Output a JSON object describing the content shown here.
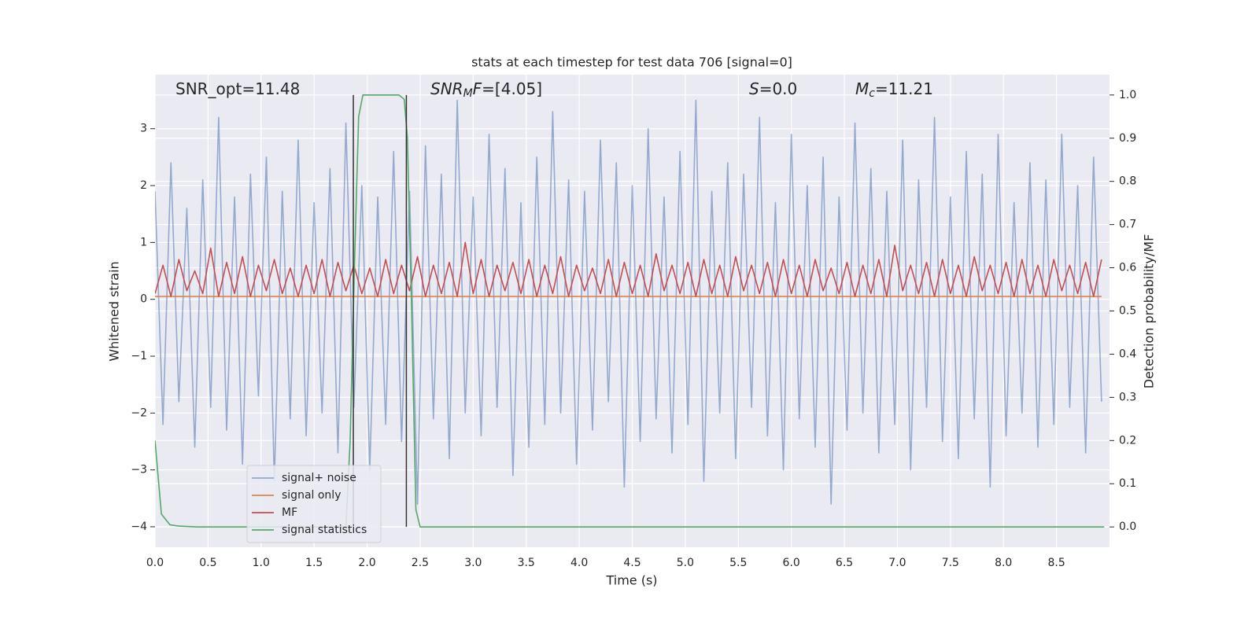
{
  "chart_data": {
    "type": "line",
    "title": "stats at each timestep for test data 706 [signal=0]",
    "xlabel": "Time (s)",
    "ylabel": "Whitened strain",
    "y2label": "Detection probability/MF",
    "annotations": [
      [
        {
          "text": "SNR_opt=11.48"
        }
      ],
      [
        {
          "text": "SNR",
          "style": "italic"
        },
        {
          "text": "M",
          "style": "sub"
        },
        {
          "text": "F",
          "style": "italic"
        },
        {
          "text": "=[4.05]"
        }
      ],
      [
        {
          "text": "S",
          "style": "italic"
        },
        {
          "text": "=0.0"
        }
      ],
      [
        {
          "text": "M",
          "style": "italic"
        },
        {
          "text": "c",
          "style": "sub"
        },
        {
          "text": "=11.21"
        }
      ]
    ],
    "xlim": [
      0,
      9.0
    ],
    "ylim": [
      -4.36,
      3.95
    ],
    "y2lim": [
      -0.047,
      1.047
    ],
    "xticks": [
      {
        "value": 0,
        "label": "0.0"
      },
      {
        "value": 0.5,
        "label": "0.5"
      },
      {
        "value": 1,
        "label": "1.0"
      },
      {
        "value": 1.5,
        "label": "1.5"
      },
      {
        "value": 2,
        "label": "2.0"
      },
      {
        "value": 2.5,
        "label": "2.5"
      },
      {
        "value": 3,
        "label": "3.0"
      },
      {
        "value": 3.5,
        "label": "3.5"
      },
      {
        "value": 4,
        "label": "4.0"
      },
      {
        "value": 4.5,
        "label": "4.5"
      },
      {
        "value": 5,
        "label": "5.0"
      },
      {
        "value": 5.5,
        "label": "5.5"
      },
      {
        "value": 6,
        "label": "6.0"
      },
      {
        "value": 6.5,
        "label": "6.5"
      },
      {
        "value": 7,
        "label": "7.0"
      },
      {
        "value": 7.5,
        "label": "7.5"
      },
      {
        "value": 8,
        "label": "8.0"
      },
      {
        "value": 8.5,
        "label": "8.5"
      }
    ],
    "yticks": [
      {
        "value": -4,
        "label": "−4"
      },
      {
        "value": -3,
        "label": "−3"
      },
      {
        "value": -2,
        "label": "−2"
      },
      {
        "value": -1,
        "label": "−1"
      },
      0,
      1,
      2,
      3
    ],
    "y2ticks": [
      {
        "value": 0,
        "label": "0.0"
      },
      {
        "value": 0.1,
        "label": "0.1"
      },
      {
        "value": 0.2,
        "label": "0.2"
      },
      {
        "value": 0.3,
        "label": "0.3"
      },
      {
        "value": 0.4,
        "label": "0.4"
      },
      {
        "value": 0.5,
        "label": "0.5"
      },
      {
        "value": 0.6,
        "label": "0.6"
      },
      {
        "value": 0.7,
        "label": "0.7"
      },
      {
        "value": 0.8,
        "label": "0.8"
      },
      {
        "value": 0.9,
        "label": "0.9"
      },
      {
        "value": 1.0,
        "label": "1.0"
      }
    ],
    "grid": true,
    "legend": "lower left",
    "vlines": [
      1.87,
      2.37
    ],
    "vline_color": "#333333",
    "x": [
      0,
      0.075,
      0.15,
      0.225,
      0.3,
      0.375,
      0.45,
      0.525,
      0.6,
      0.675,
      0.75,
      0.825,
      0.9,
      0.975,
      1.05,
      1.125,
      1.2,
      1.275,
      1.35,
      1.425,
      1.5,
      1.575,
      1.65,
      1.725,
      1.8,
      1.875,
      1.95,
      2.025,
      2.1,
      2.175,
      2.25,
      2.325,
      2.4,
      2.475,
      2.55,
      2.625,
      2.7,
      2.775,
      2.85,
      2.925,
      3,
      3.075,
      3.15,
      3.225,
      3.3,
      3.375,
      3.45,
      3.525,
      3.6,
      3.675,
      3.75,
      3.825,
      3.9,
      3.975,
      4.05,
      4.125,
      4.2,
      4.275,
      4.35,
      4.425,
      4.5,
      4.575,
      4.65,
      4.725,
      4.8,
      4.875,
      4.95,
      5.025,
      5.1,
      5.175,
      5.25,
      5.325,
      5.4,
      5.475,
      5.55,
      5.625,
      5.7,
      5.775,
      5.85,
      5.925,
      6,
      6.075,
      6.15,
      6.225,
      6.3,
      6.375,
      6.45,
      6.525,
      6.6,
      6.675,
      6.75,
      6.825,
      6.9,
      6.975,
      7.05,
      7.125,
      7.2,
      7.275,
      7.35,
      7.425,
      7.5,
      7.575,
      7.65,
      7.725,
      7.8,
      7.875,
      7.95,
      8.025,
      8.1,
      8.175,
      8.25,
      8.325,
      8.4,
      8.475,
      8.55,
      8.625,
      8.7,
      8.775,
      8.85,
      8.925
    ],
    "series": [
      {
        "name": "signal+ noise",
        "color": "#4c72b0",
        "opacity": 0.55,
        "values": [
          1.9,
          -2.2,
          2.4,
          -1.8,
          1.6,
          -2.6,
          2.1,
          -1.9,
          3.2,
          -2.3,
          1.8,
          -2.9,
          2.2,
          -1.7,
          2.5,
          -3.2,
          1.9,
          -2.1,
          2.8,
          -2.4,
          1.7,
          -2.0,
          2.3,
          -2.7,
          3.1,
          -1.9,
          2.0,
          -3.0,
          1.8,
          -2.2,
          2.6,
          -2.5,
          1.9,
          -3.6,
          2.7,
          -2.1,
          2.2,
          -2.8,
          3.5,
          -2.0,
          1.8,
          -2.4,
          2.9,
          -1.9,
          2.3,
          -3.1,
          1.7,
          -2.6,
          2.5,
          -2.2,
          3.3,
          -2.0,
          2.1,
          -2.9,
          1.9,
          -2.3,
          2.8,
          -1.8,
          2.4,
          -3.3,
          2.0,
          -2.5,
          3.0,
          -2.1,
          1.8,
          -2.7,
          2.6,
          -2.2,
          3.5,
          -3.2,
          1.9,
          -2.0,
          2.4,
          -2.8,
          2.2,
          -1.9,
          3.2,
          -2.4,
          1.7,
          -3.0,
          2.9,
          -2.1,
          2.0,
          -2.6,
          2.5,
          -3.6,
          1.8,
          -2.3,
          3.1,
          -2.0,
          2.3,
          -2.7,
          1.9,
          -2.2,
          2.8,
          -3.0,
          2.1,
          -1.9,
          3.2,
          -2.5,
          1.8,
          -2.8,
          2.6,
          -2.1,
          2.2,
          -3.3,
          2.9,
          -2.4,
          1.7,
          -2.0,
          2.4,
          -2.6,
          2.1,
          -2.2,
          2.9,
          -1.9,
          2.0,
          -2.7,
          2.5,
          -1.8
        ]
      },
      {
        "name": "signal only",
        "color": "#dd8452",
        "x": [
          0,
          8.925
        ],
        "values": [
          0.05,
          0.05
        ]
      },
      {
        "name": "MF",
        "color": "#c44e52",
        "values": [
          0.1,
          0.6,
          0.05,
          0.7,
          0.15,
          0.5,
          0.1,
          0.9,
          0.05,
          0.65,
          0.1,
          0.75,
          0.05,
          0.6,
          0.15,
          0.7,
          0.1,
          0.55,
          0.05,
          0.6,
          0.1,
          0.7,
          0.05,
          0.65,
          0.15,
          0.6,
          0.1,
          0.55,
          0.05,
          0.7,
          0.1,
          0.6,
          0.15,
          0.75,
          0.05,
          0.6,
          0.1,
          0.65,
          0.05,
          1.0,
          0.1,
          0.7,
          0.05,
          0.6,
          0.15,
          0.65,
          0.1,
          0.7,
          0.05,
          0.6,
          0.1,
          0.75,
          0.05,
          0.6,
          0.15,
          0.55,
          0.1,
          0.7,
          0.05,
          0.65,
          0.1,
          0.6,
          0.05,
          0.8,
          0.15,
          0.6,
          0.1,
          0.65,
          0.05,
          0.7,
          0.1,
          0.6,
          0.05,
          0.75,
          0.15,
          0.6,
          0.1,
          0.65,
          0.05,
          0.7,
          0.1,
          0.6,
          0.05,
          0.7,
          0.15,
          0.55,
          0.1,
          0.65,
          0.05,
          0.6,
          0.1,
          0.7,
          0.05,
          0.95,
          0.15,
          0.6,
          0.1,
          0.65,
          0.05,
          0.7,
          0.1,
          0.6,
          0.05,
          0.75,
          0.15,
          0.6,
          0.1,
          0.65,
          0.05,
          0.7,
          0.1,
          0.6,
          0.05,
          0.7,
          0.15,
          0.6,
          0.1,
          0.65,
          0.05,
          0.7
        ]
      },
      {
        "name": "signal statistics",
        "color": "#55a868",
        "axis": "y2",
        "x": [
          0,
          0.06,
          0.14,
          0.22,
          0.4,
          1.8,
          1.84,
          1.88,
          1.92,
          1.96,
          2.3,
          2.35,
          2.38,
          2.42,
          2.46,
          2.5,
          8.95
        ],
        "values": [
          0.2,
          0.03,
          0.005,
          0.002,
          0.0,
          0.0,
          0.2,
          0.6,
          0.95,
          1.0,
          1.0,
          0.99,
          0.9,
          0.5,
          0.04,
          0.0,
          0.0
        ]
      }
    ]
  }
}
